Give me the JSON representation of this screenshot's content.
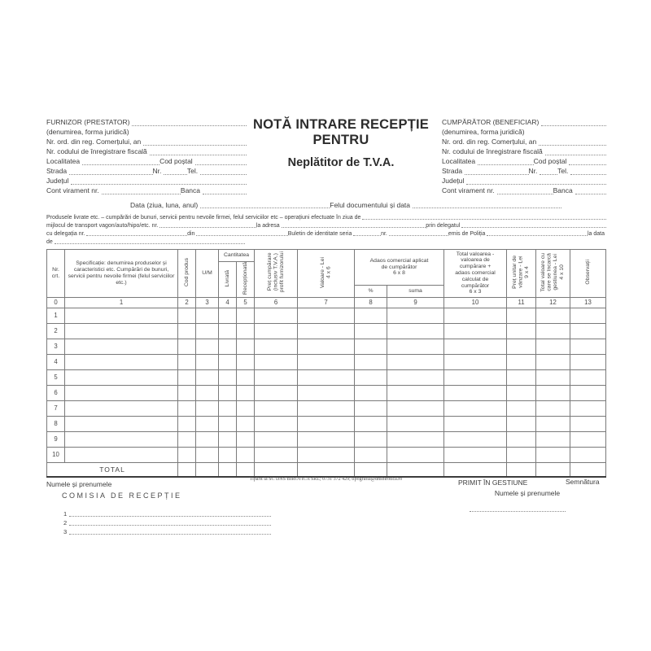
{
  "title": {
    "line1": "NOTĂ INTRARE RECEPȚIE",
    "line2": "PENTRU",
    "line3": "Neplătitor de T.V.A."
  },
  "furnizor": {
    "rows": [
      [
        "FURNIZOR (PRESTATOR)",
        "~1"
      ],
      [
        "(denumirea, forma juridică)"
      ],
      [
        "Nr. ord. din reg. Comerțului, an",
        "~1"
      ],
      [
        "Nr. codului de înregistrare fiscală",
        "~1"
      ],
      [
        "Localitatea",
        "~1.5",
        "Cod poștal",
        "~1"
      ],
      [
        "Strada",
        "~1.8",
        "Nr.",
        "~0.5",
        "Tel.",
        "~1"
      ],
      [
        "Județul",
        "~1"
      ],
      [
        "Cont virament nr.",
        "~1.8",
        "Banca",
        "~1"
      ]
    ]
  },
  "cumparator": {
    "rows": [
      [
        "CUMPĂRĂTOR (BENEFICIAR)",
        "~1"
      ],
      [
        "(denumirea, forma juridică)"
      ],
      [
        "Nr. ord. din reg. Comerțului, an",
        "~1"
      ],
      [
        "Nr. codului de înregistrare fiscală",
        "~1"
      ],
      [
        "Localitatea",
        "~1.5",
        "Cod poștal",
        "~1"
      ],
      [
        "Strada",
        "~1.8",
        "Nr.",
        "~0.5",
        "Tel.",
        "~1"
      ],
      [
        "Județul",
        "~1"
      ],
      [
        "Cont virament nr.",
        "~1.8",
        "Banca",
        "~1"
      ]
    ]
  },
  "midsection": {
    "data_line": [
      "Data (ziua, luna, anul)",
      "~1",
      "Felul documentului și data",
      "~1.15"
    ],
    "para_lines": [
      [
        "Produsele livrate etc. – cumpărări de bunuri, servicii pentru nevoile firmei, felul serviciilor etc – operațiuni efectuate în ziua de",
        "~1"
      ],
      [
        "mijlocul de transport vagon/auto/hipo/etc. nr.",
        "~1",
        "la adresa",
        "~1.5",
        "prin delegatul",
        "~1.5"
      ],
      [
        "cu delegația nr.",
        "~1.1",
        "din",
        "~1",
        "Buletin de identitate seria",
        "~0.3",
        "nr.",
        "~0.65",
        "emis de Poliția",
        "~1.1",
        "la data"
      ],
      [
        "de",
        "~1",
        "_1.9"
      ]
    ]
  },
  "table": {
    "headers": {
      "nr_crt": "Nr. crt.",
      "specificatie": "Specificație: denumirea produselor și caracteristici etc. Cumpărări de bunuri, servicii pentru nevoile firmei (felul serviciilor etc.)",
      "cod_produs": "Cod produs",
      "um": "U/M",
      "cantitatea": "Cantitatea",
      "livrata": "Livrată",
      "receptionata": "Recepționată",
      "pret_cumparare": "Preț cumpărare\n(inclusiv T.V.A.)\nprofit furnizorului",
      "valoare": "Valoare - Lei\n4 x 6",
      "adaos": "Adaos comercial aplicat\nde cumpărător\n6 x 8",
      "procent": "%",
      "suma": "suma",
      "total_valoarea": "Total valoarea -\nvaloarea de\ncumpărare +\nadaos comercial\ncalculat de\ncumpărător\n6 x 3",
      "pret_unitar": "Preț unitar de\nvânzare - Lei\n9 x 4",
      "total_gestiune": "Total valoare cu\ncare se încarcă\ngestiunea - Lei\n4 x 10",
      "observatii": "Observații"
    },
    "col_numbers": [
      "0",
      "1",
      "2",
      "3",
      "4",
      "5",
      "6",
      "7",
      "8",
      "9",
      "10",
      "11",
      "12",
      "13"
    ],
    "row_numbers": [
      "1",
      "2",
      "3",
      "4",
      "5",
      "6",
      "7",
      "8",
      "9",
      "10"
    ],
    "total_label": "TOTAL"
  },
  "footer": {
    "print_note": "Tipărit la SC DNS BIROTICA SRL; 0731 372 429; tipografia@dnsbirotica.ro",
    "numele_left": "Numele și prenumele",
    "comisia": "COMISIA DE RECEPȚIE",
    "members": [
      "1",
      "2",
      "3"
    ],
    "primit": "PRIMIT ÎN GESTIUNE",
    "semnatura": "Semnătura",
    "numele_right": "Numele și prenumele"
  }
}
